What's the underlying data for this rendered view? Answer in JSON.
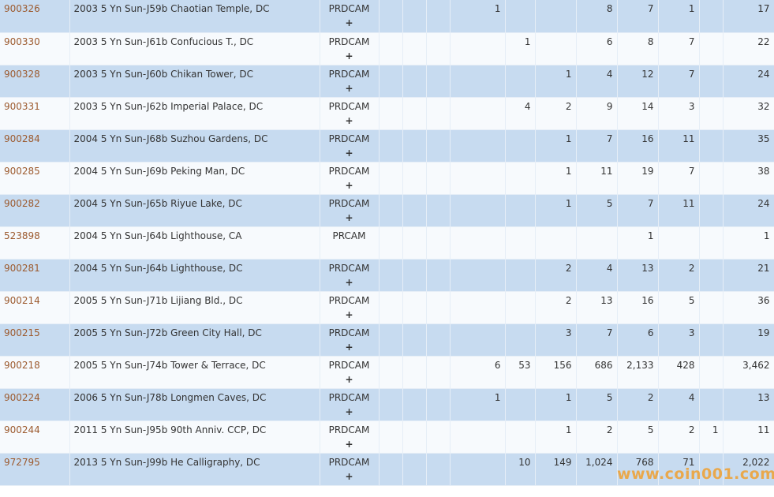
{
  "table": {
    "rows": [
      {
        "id": "900326",
        "name": "2003 5 Yn Sun-J59b Chaotian Temple, DC",
        "grade": "PRDCAM",
        "plus": "+",
        "counts": [
          null,
          null,
          null,
          1,
          null,
          null,
          8,
          7,
          1,
          null,
          17
        ]
      },
      {
        "id": "900330",
        "name": "2003 5 Yn Sun-J61b Confucious T., DC",
        "grade": "PRDCAM",
        "plus": "+",
        "counts": [
          null,
          null,
          null,
          null,
          1,
          null,
          6,
          8,
          7,
          null,
          22
        ]
      },
      {
        "id": "900328",
        "name": "2003 5 Yn Sun-J60b Chikan Tower, DC",
        "grade": "PRDCAM",
        "plus": "+",
        "counts": [
          null,
          null,
          null,
          null,
          null,
          1,
          4,
          12,
          7,
          null,
          24
        ]
      },
      {
        "id": "900331",
        "name": "2003 5 Yn Sun-J62b Imperial Palace, DC",
        "grade": "PRDCAM",
        "plus": "+",
        "counts": [
          null,
          null,
          null,
          null,
          4,
          2,
          9,
          14,
          3,
          null,
          32
        ]
      },
      {
        "id": "900284",
        "name": "2004 5 Yn Sun-J68b Suzhou Gardens, DC",
        "grade": "PRDCAM",
        "plus": "+",
        "counts": [
          null,
          null,
          null,
          null,
          null,
          1,
          7,
          16,
          11,
          null,
          35
        ]
      },
      {
        "id": "900285",
        "name": "2004 5 Yn Sun-J69b Peking Man, DC",
        "grade": "PRDCAM",
        "plus": "+",
        "counts": [
          null,
          null,
          null,
          null,
          null,
          1,
          11,
          19,
          7,
          null,
          38
        ]
      },
      {
        "id": "900282",
        "name": "2004 5 Yn Sun-J65b Riyue Lake, DC",
        "grade": "PRDCAM",
        "plus": "+",
        "counts": [
          null,
          null,
          null,
          null,
          null,
          1,
          5,
          7,
          11,
          null,
          24
        ]
      },
      {
        "id": "523898",
        "name": "2004 5 Yn Sun-J64b Lighthouse, CA",
        "grade": "PRCAM",
        "counts": [
          null,
          null,
          null,
          null,
          null,
          null,
          null,
          1,
          null,
          null,
          1
        ]
      },
      {
        "id": "900281",
        "name": "2004 5 Yn Sun-J64b Lighthouse, DC",
        "grade": "PRDCAM",
        "plus": "+",
        "counts": [
          null,
          null,
          null,
          null,
          null,
          2,
          4,
          13,
          2,
          null,
          21
        ]
      },
      {
        "id": "900214",
        "name": "2005 5 Yn Sun-J71b Lijiang Bld., DC",
        "grade": "PRDCAM",
        "plus": "+",
        "counts": [
          null,
          null,
          null,
          null,
          null,
          2,
          13,
          16,
          5,
          null,
          36
        ]
      },
      {
        "id": "900215",
        "name": "2005 5 Yn Sun-J72b Green City Hall, DC",
        "grade": "PRDCAM",
        "plus": "+",
        "counts": [
          null,
          null,
          null,
          null,
          null,
          3,
          7,
          6,
          3,
          null,
          19
        ]
      },
      {
        "id": "900218",
        "name": "2005 5 Yn Sun-J74b Tower & Terrace, DC",
        "grade": "PRDCAM",
        "plus": "+",
        "counts": [
          null,
          null,
          null,
          6,
          53,
          156,
          686,
          "2,133",
          428,
          null,
          "3,462"
        ]
      },
      {
        "id": "900224",
        "name": "2006 5 Yn Sun-J78b Longmen Caves, DC",
        "grade": "PRDCAM",
        "plus": "+",
        "counts": [
          null,
          null,
          null,
          1,
          null,
          1,
          5,
          2,
          4,
          null,
          13
        ]
      },
      {
        "id": "900244",
        "name": "2011 5 Yn Sun-J95b 90th Anniv. CCP, DC",
        "grade": "PRDCAM",
        "plus": "+",
        "counts": [
          null,
          null,
          null,
          null,
          null,
          1,
          2,
          5,
          2,
          1,
          11
        ]
      },
      {
        "id": "972795",
        "name": "2013 5 Yn Sun-J99b He Calligraphy, DC",
        "grade": "PRDCAM",
        "plus": "+",
        "counts": [
          null,
          null,
          null,
          null,
          10,
          149,
          "1,024",
          768,
          71,
          null,
          "2,022"
        ]
      }
    ]
  },
  "watermark": "www.coin001.com"
}
